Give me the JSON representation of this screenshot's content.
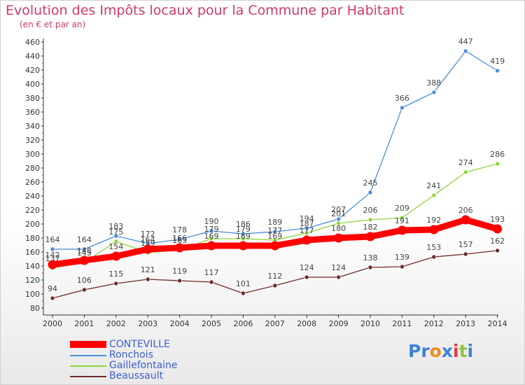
{
  "chart_data": {
    "type": "line",
    "title": "Evolution des Impôts locaux pour la Commune par Habitant",
    "subtitle": "(en € et par an)",
    "xlabel": "",
    "ylabel": "",
    "ylim": [
      80,
      460
    ],
    "ytick_step": 20,
    "grid": false,
    "legend_position": "bottom-left",
    "categories": [
      "2000",
      "2001",
      "2002",
      "2003",
      "2004",
      "2005",
      "2006",
      "2007",
      "2008",
      "2009",
      "2010",
      "2011",
      "2012",
      "2013",
      "2014"
    ],
    "series": [
      {
        "name": "CONTEVILLE",
        "color": "#ff0000",
        "values": [
          142,
          148,
          154,
          164,
          166,
          169,
          169,
          169,
          177,
          180,
          182,
          191,
          192,
          206,
          193
        ],
        "labels": [
          "142",
          "148",
          "154",
          "164",
          "166",
          "169",
          "169",
          "169",
          "177",
          "180",
          "182",
          "191",
          "192",
          "206",
          "193"
        ]
      },
      {
        "name": "Ronchois",
        "color": "#4a8ed8",
        "values": [
          164,
          164,
          183,
          172,
          178,
          190,
          186,
          189,
          194,
          207,
          245,
          366,
          388,
          447,
          419
        ],
        "labels": [
          "164",
          "164",
          "183",
          "172",
          "178",
          "190",
          "186",
          "189",
          "194",
          "207",
          "245",
          "366",
          "388",
          "447",
          "419"
        ]
      },
      {
        "name": "Gaillefontaine",
        "color": "#8fd43c",
        "values": [
          137,
          145,
          175,
          159,
          163,
          179,
          179,
          177,
          187,
          201,
          206,
          209,
          241,
          274,
          286
        ],
        "labels": [
          "137",
          "145",
          "175",
          "159",
          "163",
          "179",
          "179",
          "177",
          "187",
          "201",
          "206",
          "209",
          "241",
          "274",
          "286"
        ]
      },
      {
        "name": "Beaussault",
        "color": "#6e2a2a",
        "values": [
          94,
          106,
          115,
          121,
          119,
          117,
          101,
          112,
          124,
          124,
          138,
          139,
          153,
          157,
          162
        ],
        "labels": [
          "94",
          "106",
          "115",
          "121",
          "119",
          "117",
          "101",
          "112",
          "124",
          "124",
          "138",
          "139",
          "153",
          "157",
          "162"
        ]
      }
    ]
  },
  "logo": {
    "parts": [
      "Pr",
      "o",
      "x",
      "i",
      "t",
      "i"
    ],
    "colors": [
      "#3b82d6",
      "#f08a1c",
      "#3b82d6",
      "#e23b3b",
      "#8cc63f",
      "#3b82d6"
    ]
  }
}
